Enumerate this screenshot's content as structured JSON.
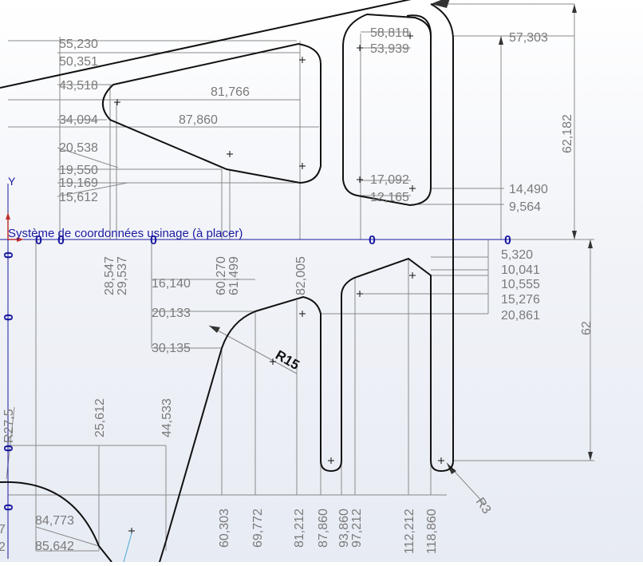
{
  "colors": {
    "geometry": "#111111",
    "dimension": "#8a8a8a",
    "dim_text": "#7a7a7a",
    "origin": "#1a1aa0",
    "axis_y": "#1a1aa0",
    "axis_x": "#c03030"
  },
  "axis": {
    "y_label": "Y"
  },
  "coordinate_system_label": "Système de coordonnées usinage (à placer)",
  "origin_zeros": [
    "0",
    "0",
    "0",
    "0",
    "0",
    "0",
    "0",
    "0",
    "0"
  ],
  "dims_y_left_top": [
    "55,230",
    "50,351",
    "43,518",
    "34,094",
    "20,538",
    "19,550",
    "19,169",
    "15,612"
  ],
  "dims_x_top": [
    "81,766",
    "87,860"
  ],
  "dims_y_pocket": [
    "58,818",
    "53,939",
    "17,092",
    "12,165"
  ],
  "dims_y_right": [
    "57,303",
    "14,490",
    "9,564"
  ],
  "dim_overall_right_top": "62,182",
  "dims_x_vertical_mid": [
    "28,547",
    "29,537",
    "60,270",
    "61,499",
    "82,005"
  ],
  "dims_y_left_mid": [
    "16,140",
    "20,133",
    "30,135"
  ],
  "radius_main": "R15",
  "dims_y_right_lower": [
    "5,320",
    "10,041",
    "10,555",
    "15,276",
    "20,861"
  ],
  "dim_overall_right_bottom": "62",
  "dims_x_lower": [
    "25,612",
    "44,533"
  ],
  "radius_left": "R27,5",
  "dims_y_bottom_left": [
    "84,773",
    "85,642"
  ],
  "dims_x_bottom": [
    "60,303",
    "69,772",
    "81,212",
    "87,860",
    "93,860",
    "97,212",
    "112,212",
    "118,860"
  ],
  "radius_small": "R3",
  "partial_left": [
    "7",
    "2"
  ]
}
